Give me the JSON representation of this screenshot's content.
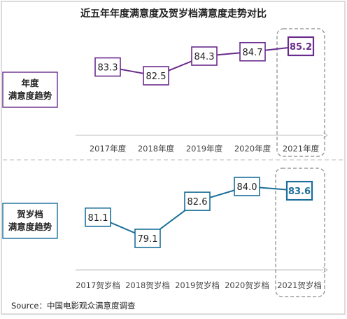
{
  "title": "近五年年度满意度及贺岁档满意度走势对比",
  "source": "Source：中国电影观众满意度调查",
  "colors": {
    "annual": "#6a2c8c",
    "annual_highlight": "#6a2c8c",
    "newyear": "#1b6f9a",
    "newyear_highlight": "#1b6f9a",
    "axis": "#bdbdbd",
    "divider": "#bdbdbd"
  },
  "chart_data": [
    {
      "type": "line",
      "series_label": "年度\n满意度趋势",
      "categories": [
        "2017年度",
        "2018年度",
        "2019年度",
        "2020年度",
        "2021年度"
      ],
      "values": [
        83.3,
        82.5,
        84.3,
        84.7,
        85.2
      ],
      "highlight_index": 4,
      "highlight_box": "dashed-rounded-rect"
    },
    {
      "type": "line",
      "series_label": "贺岁档\n满意度趋势",
      "categories": [
        "2017贺岁档",
        "2018贺岁档",
        "2019贺岁档",
        "2020贺岁档",
        "2021贺岁档"
      ],
      "values": [
        81.1,
        79.1,
        82.6,
        84.0,
        83.6
      ],
      "highlight_index": 4,
      "highlight_box": "dashed-rounded-rect"
    }
  ]
}
